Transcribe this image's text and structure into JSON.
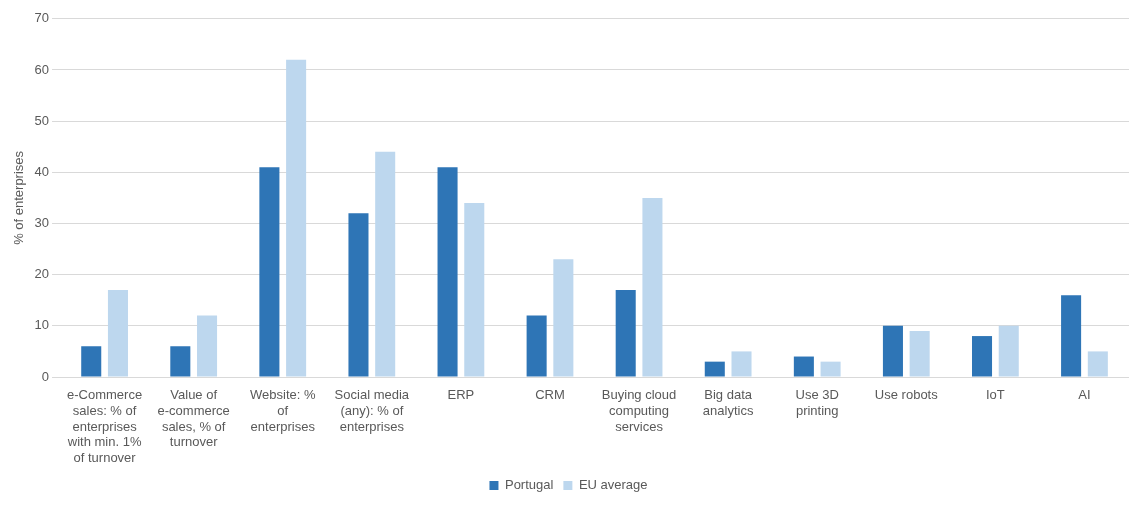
{
  "chart_data": {
    "type": "bar",
    "ylabel": "% of enterprises",
    "categories": [
      "e-Commerce sales: % of enterprises with min. 1% of turnover",
      "Value of e-commerce sales, % of turnover",
      "Website: % of enterprises",
      "Social media (any): % of enterprises",
      "ERP",
      "CRM",
      "Buying cloud computing services",
      "Big data analytics",
      "Use 3D printing",
      "Use robots",
      "IoT",
      "AI"
    ],
    "series": [
      {
        "name": "Portugal",
        "color": "#2e75b6",
        "values": [
          6,
          6,
          41,
          32,
          41,
          12,
          17,
          3,
          4,
          10,
          8,
          16
        ]
      },
      {
        "name": "EU average",
        "color": "#bdd7ee",
        "values": [
          17,
          12,
          62,
          44,
          34,
          23,
          35,
          5,
          3,
          9,
          10,
          5
        ]
      }
    ],
    "ylim": [
      0,
      70
    ],
    "yticks": [
      0,
      10,
      20,
      30,
      40,
      50,
      60,
      70
    ],
    "grid": "y",
    "legend": "bottom"
  }
}
